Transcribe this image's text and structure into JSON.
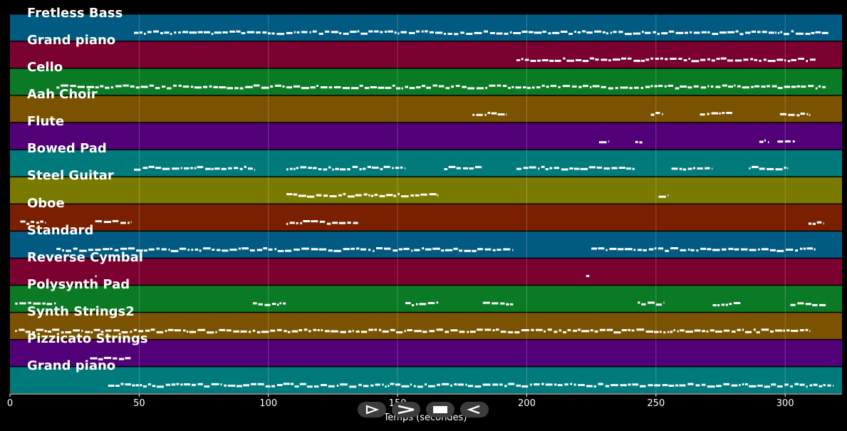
{
  "axis": {
    "xlabel": "Temps (secondes)",
    "xlim": [
      0,
      322
    ],
    "ticks": [
      0,
      50,
      100,
      150,
      200,
      250,
      300
    ]
  },
  "tracks": [
    {
      "name": "Fretless Bass",
      "color": "#005a82",
      "segments": [
        [
          48,
          317
        ]
      ]
    },
    {
      "name": "Grand piano",
      "color": "#7a0030",
      "segments": [
        [
          196,
          312
        ]
      ]
    },
    {
      "name": "Cello",
      "color": "#0a7a24",
      "segments": [
        [
          18,
          316
        ]
      ]
    },
    {
      "name": "Aah Choir",
      "color": "#7a5200",
      "segments": [
        [
          179,
          192
        ],
        [
          248,
          253
        ],
        [
          267,
          280
        ],
        [
          298,
          310
        ]
      ]
    },
    {
      "name": "Flute",
      "color": "#520078",
      "segments": [
        [
          228,
          232
        ],
        [
          242,
          245
        ],
        [
          290,
          294
        ],
        [
          297,
          304
        ]
      ]
    },
    {
      "name": "Bowed Pad",
      "color": "#007a7a",
      "segments": [
        [
          48,
          95
        ],
        [
          107,
          153
        ],
        [
          168,
          183
        ],
        [
          196,
          242
        ],
        [
          256,
          272
        ],
        [
          286,
          301
        ]
      ]
    },
    {
      "name": "Steel Guitar",
      "color": "#7a7a00",
      "segments": [
        [
          107,
          166
        ],
        [
          251,
          255
        ]
      ]
    },
    {
      "name": "Oboe",
      "color": "#7a2000",
      "segments": [
        [
          4,
          14
        ],
        [
          33,
          47
        ],
        [
          107,
          135
        ],
        [
          309,
          315
        ]
      ]
    },
    {
      "name": "Standard",
      "color": "#005a82",
      "segments": [
        [
          18,
          195
        ],
        [
          225,
          312
        ]
      ]
    },
    {
      "name": "Reverse Cymbal",
      "color": "#7a0030",
      "segments": [
        [
          33,
          33.8
        ],
        [
          223,
          224.5
        ]
      ]
    },
    {
      "name": "Polysynth Pad",
      "color": "#0a7a24",
      "segments": [
        [
          2,
          18
        ],
        [
          94,
          107
        ],
        [
          153,
          166
        ],
        [
          183,
          195
        ],
        [
          243,
          253
        ],
        [
          272,
          283
        ],
        [
          302,
          316
        ]
      ]
    },
    {
      "name": "Synth Strings2",
      "color": "#7a5200",
      "segments": [
        [
          2,
          310
        ]
      ]
    },
    {
      "name": "Pizzicato Strings",
      "color": "#520078",
      "segments": [
        [
          31,
          47
        ]
      ]
    },
    {
      "name": "Grand piano",
      "color": "#007a7a",
      "segments": [
        [
          38,
          319
        ]
      ]
    }
  ],
  "controls": {
    "prev_icon": "prev-triangle-icon",
    "next_icon": "next-chevron-icon",
    "stop_icon": "stop-square-icon",
    "back_icon": "back-triangle-icon"
  }
}
